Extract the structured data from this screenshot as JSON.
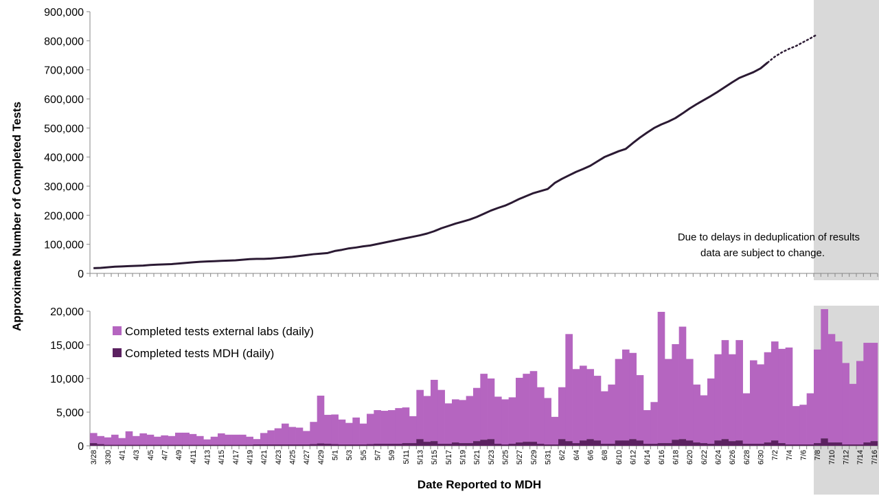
{
  "chart_data": {
    "type": "line+bar",
    "ylabel": "Approximate Number of Completed Tests",
    "xlabel": "Date Reported to MDH",
    "x_tick_labels": [
      "3/28",
      "3/30",
      "4/1",
      "4/3",
      "4/5",
      "4/7",
      "4/9",
      "4/11",
      "4/13",
      "4/15",
      "4/17",
      "4/19",
      "4/21",
      "4/23",
      "4/25",
      "4/27",
      "4/29",
      "5/1",
      "5/3",
      "5/5",
      "5/7",
      "5/9",
      "5/11",
      "5/13",
      "5/15",
      "5/17",
      "5/19",
      "5/21",
      "5/23",
      "5/25",
      "5/27",
      "5/29",
      "5/31",
      "6/2",
      "6/4",
      "6/6",
      "6/8",
      "6/10",
      "6/12",
      "6/14",
      "6/16",
      "6/18",
      "6/20",
      "6/22",
      "6/24",
      "6/26",
      "6/28",
      "6/30",
      "7/2",
      "7/4",
      "7/6",
      "7/8",
      "7/10",
      "7/12",
      "7/14",
      "7/16"
    ],
    "note": [
      "Due to delays in deduplication of results",
      "data are subject to change."
    ],
    "shaded_region": {
      "from": "7/9",
      "to": "7/16",
      "color": "#d9d9d9"
    },
    "top_panel": {
      "type": "line",
      "ylim": [
        0,
        900000
      ],
      "yticks": [
        "0",
        "100,000",
        "200,000",
        "300,000",
        "400,000",
        "500,000",
        "600,000",
        "700,000",
        "800,000",
        "900,000"
      ],
      "color": "#2b1a33",
      "values": [
        18000,
        19000,
        21000,
        23000,
        24000,
        25000,
        26000,
        27000,
        29000,
        30000,
        31000,
        32000,
        34000,
        36000,
        38000,
        40000,
        41000,
        42000,
        43000,
        44000,
        45000,
        47000,
        49000,
        50000,
        50000,
        51000,
        53000,
        55000,
        57000,
        60000,
        63000,
        66000,
        68000,
        70000,
        77000,
        81000,
        86000,
        89000,
        93000,
        96000,
        101000,
        106000,
        111000,
        116000,
        121000,
        126000,
        131000,
        137000,
        145000,
        155000,
        163000,
        171000,
        178000,
        185000,
        194000,
        205000,
        216000,
        225000,
        233000,
        244000,
        256000,
        266000,
        276000,
        283000,
        290000,
        311000,
        325000,
        337000,
        349000,
        359000,
        370000,
        385000,
        400000,
        410000,
        420000,
        428000,
        448000,
        467000,
        484000,
        500000,
        512000,
        522000,
        534000,
        550000,
        567000,
        582000,
        596000,
        610000,
        625000,
        641000,
        657000,
        672000,
        682000,
        692000,
        705000,
        725000
      ],
      "projected_values": [
        745000,
        760000,
        772000,
        782000,
        795000,
        808000,
        822000
      ]
    },
    "bottom_panel": {
      "type": "stacked-bar",
      "ylim": [
        0,
        20000
      ],
      "yticks": [
        "0",
        "5,000",
        "10,000",
        "15,000",
        "20,000"
      ],
      "series": [
        {
          "name": "Completed tests external labs (daily)",
          "color": "#b565c0",
          "values": [
            1500,
            1200,
            1100,
            1500,
            1000,
            2000,
            1300,
            1700,
            1500,
            1200,
            1400,
            1300,
            1800,
            1800,
            1600,
            1300,
            800,
            1200,
            1700,
            1500,
            1500,
            1500,
            1200,
            800,
            1700,
            2100,
            2400,
            3100,
            2600,
            2500,
            2000,
            3300,
            7100,
            4300,
            4400,
            3700,
            3200,
            4000,
            3100,
            4500,
            5000,
            4900,
            5000,
            5300,
            5300,
            4000,
            7300,
            6800,
            9100,
            8000,
            6000,
            6400,
            6400,
            7000,
            7900,
            9800,
            9000,
            7000,
            6700,
            6900,
            9600,
            10100,
            10500,
            8400,
            6900,
            4100,
            7700,
            15900,
            11000,
            11100,
            10400,
            9600,
            7800,
            8800,
            12100,
            13500,
            12800,
            9700,
            5000,
            6200,
            19500,
            12500,
            14200,
            16700,
            12100,
            8600,
            7100,
            9700,
            12800,
            14700,
            12900,
            14900,
            7500,
            12400,
            11800,
            13400,
            14700,
            14000,
            14400,
            5700,
            5900,
            7600,
            13900,
            19200,
            16100,
            15000,
            12100,
            9000,
            12400,
            14800,
            14600
          ]
        },
        {
          "name": "Completed tests MDH (daily)",
          "color": "#5b2160",
          "values": [
            400,
            250,
            150,
            150,
            150,
            150,
            150,
            150,
            150,
            150,
            150,
            150,
            150,
            150,
            150,
            150,
            150,
            150,
            150,
            150,
            150,
            150,
            150,
            200,
            200,
            200,
            200,
            200,
            200,
            200,
            200,
            250,
            350,
            300,
            250,
            200,
            200,
            200,
            200,
            250,
            300,
            300,
            300,
            300,
            400,
            400,
            1000,
            600,
            700,
            300,
            300,
            500,
            400,
            400,
            700,
            900,
            1000,
            300,
            200,
            300,
            500,
            600,
            600,
            300,
            200,
            200,
            1000,
            700,
            400,
            800,
            1000,
            800,
            300,
            300,
            800,
            800,
            1000,
            800,
            300,
            300,
            400,
            400,
            900,
            1000,
            800,
            500,
            400,
            300,
            800,
            1000,
            700,
            800,
            300,
            300,
            300,
            500,
            800,
            400,
            200,
            200,
            200,
            200,
            400,
            1100,
            500,
            500,
            200,
            200,
            200,
            500,
            700
          ]
        }
      ]
    }
  }
}
